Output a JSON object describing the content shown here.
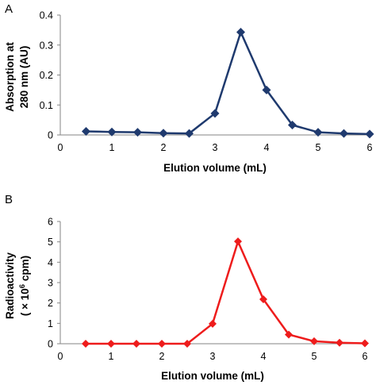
{
  "chart_data": [
    {
      "type": "line",
      "panel_label": "A",
      "x": [
        0.5,
        1,
        1.5,
        2,
        2.5,
        3,
        3.5,
        4,
        4.5,
        5,
        5.5,
        6
      ],
      "series": [
        {
          "values": [
            0.012,
            0.01,
            0.009,
            0.006,
            0.005,
            0.072,
            0.343,
            0.15,
            0.033,
            0.009,
            0.005,
            0.003
          ],
          "color": "#1f3a6e",
          "marker": "diamond"
        }
      ],
      "xlabel": "Elution volume (mL)",
      "ylabel_lines": [
        "Absorption at",
        "280 nm (AU)"
      ],
      "xlim": [
        0,
        6
      ],
      "ylim": [
        0,
        0.4
      ],
      "xticks": [
        0,
        1,
        2,
        3,
        4,
        5,
        6
      ],
      "yticks": [
        0,
        0.1,
        0.2,
        0.3,
        0.4
      ],
      "grid": false,
      "legend": "none"
    },
    {
      "type": "line",
      "panel_label": "B",
      "x": [
        0.5,
        1,
        1.5,
        2,
        2.5,
        3,
        3.5,
        4,
        4.5,
        5,
        5.5,
        6
      ],
      "series": [
        {
          "values": [
            0,
            0,
            0,
            0,
            0,
            0.98,
            5.02,
            2.18,
            0.45,
            0.12,
            0.05,
            0.02
          ],
          "color": "#ee1c1c",
          "marker": "diamond"
        }
      ],
      "xlabel": "Elution volume (mL)",
      "ylabel_lines": [
        "Radioactivity",
        "( × 10",
        "6",
        " cpm)"
      ],
      "xlim": [
        0,
        6
      ],
      "ylim": [
        0,
        6
      ],
      "xticks": [
        0,
        1,
        2,
        3,
        4,
        5,
        6
      ],
      "yticks": [
        0,
        1,
        2,
        3,
        4,
        5,
        6
      ],
      "grid": false,
      "legend": "none"
    }
  ]
}
